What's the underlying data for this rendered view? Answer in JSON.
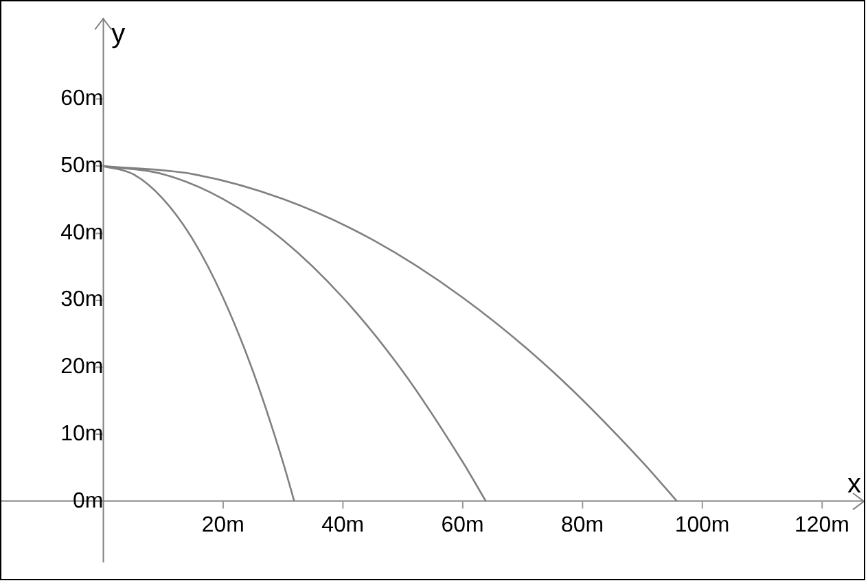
{
  "chart_data": {
    "type": "line",
    "xlabel": "x",
    "ylabel": "y",
    "xlim": [
      -17,
      127
    ],
    "ylim": [
      -9,
      72
    ],
    "xticks": [
      {
        "value": 20,
        "label": "20m"
      },
      {
        "value": 40,
        "label": "40m"
      },
      {
        "value": 60,
        "label": "60m"
      },
      {
        "value": 80,
        "label": "80m"
      },
      {
        "value": 100,
        "label": "100m"
      },
      {
        "value": 120,
        "label": "120m"
      }
    ],
    "yticks": [
      {
        "value": 0,
        "label": "0m"
      },
      {
        "value": 10,
        "label": "10m"
      },
      {
        "value": 20,
        "label": "20m"
      },
      {
        "value": 30,
        "label": "30m"
      },
      {
        "value": 40,
        "label": "40m"
      },
      {
        "value": 50,
        "label": "50m"
      },
      {
        "value": 60,
        "label": "60m"
      }
    ],
    "series": [
      {
        "color": "#808080",
        "x": [
          0,
          5,
          10,
          15,
          20,
          25,
          30,
          31.9
        ],
        "values": [
          50,
          48.8,
          45.1,
          39,
          30.4,
          19.4,
          5.9,
          0
        ]
      },
      {
        "color": "#808080",
        "x": [
          0,
          10,
          20,
          30,
          40,
          50,
          60,
          63.9
        ],
        "values": [
          50,
          48.8,
          45.1,
          39,
          30.4,
          19.4,
          5.9,
          0
        ]
      },
      {
        "color": "#808080",
        "x": [
          0,
          15,
          30,
          45,
          60,
          75,
          90,
          95.8
        ],
        "values": [
          50,
          48.8,
          45.1,
          39,
          30.4,
          19.4,
          5.9,
          0
        ]
      }
    ],
    "grid": false,
    "legend": false,
    "marker": "none",
    "line_style": "solid"
  }
}
